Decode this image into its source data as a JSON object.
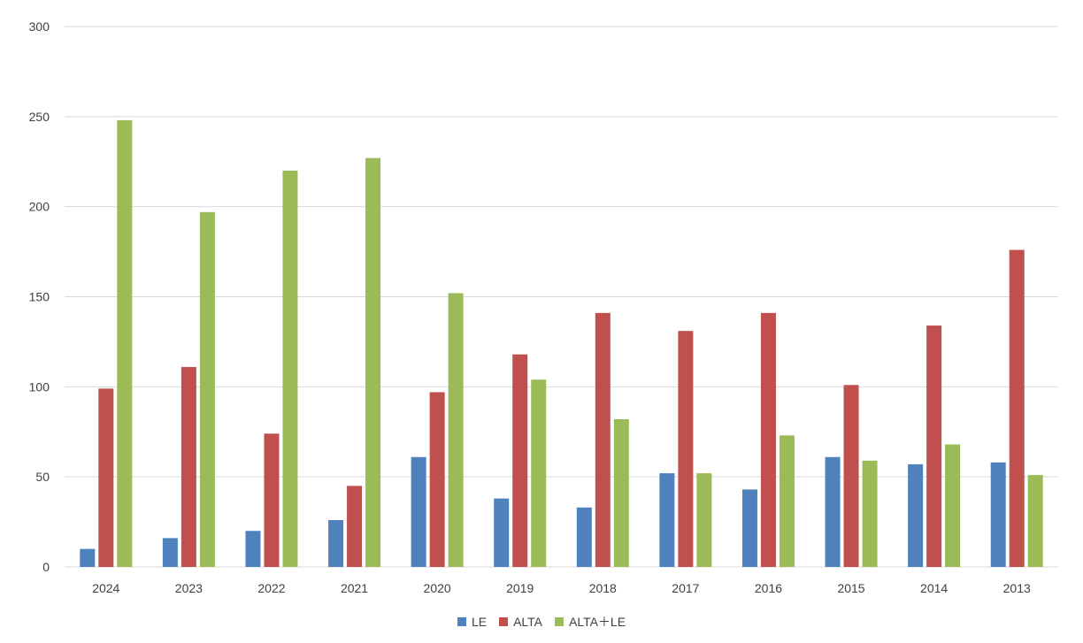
{
  "chart_data": {
    "type": "bar",
    "title": "",
    "xlabel": "",
    "ylabel": "",
    "ylim": [
      0,
      300
    ],
    "yticks": [
      0,
      50,
      100,
      150,
      200,
      250,
      300
    ],
    "grid": true,
    "legend_position": "bottom",
    "categories": [
      "2024",
      "2023",
      "2022",
      "2021",
      "2020",
      "2019",
      "2018",
      "2017",
      "2016",
      "2015",
      "2014",
      "2013"
    ],
    "series": [
      {
        "name": "LE",
        "color": "#4F81BD",
        "values": [
          10,
          16,
          20,
          26,
          61,
          38,
          33,
          52,
          43,
          61,
          57,
          58
        ]
      },
      {
        "name": "ALTA",
        "color": "#C0504D",
        "values": [
          99,
          111,
          74,
          45,
          97,
          118,
          141,
          131,
          141,
          101,
          134,
          176
        ]
      },
      {
        "name": "ALTA＋LE",
        "color": "#9BBB59",
        "values": [
          248,
          197,
          220,
          227,
          152,
          104,
          82,
          52,
          73,
          59,
          68,
          51
        ]
      }
    ]
  }
}
